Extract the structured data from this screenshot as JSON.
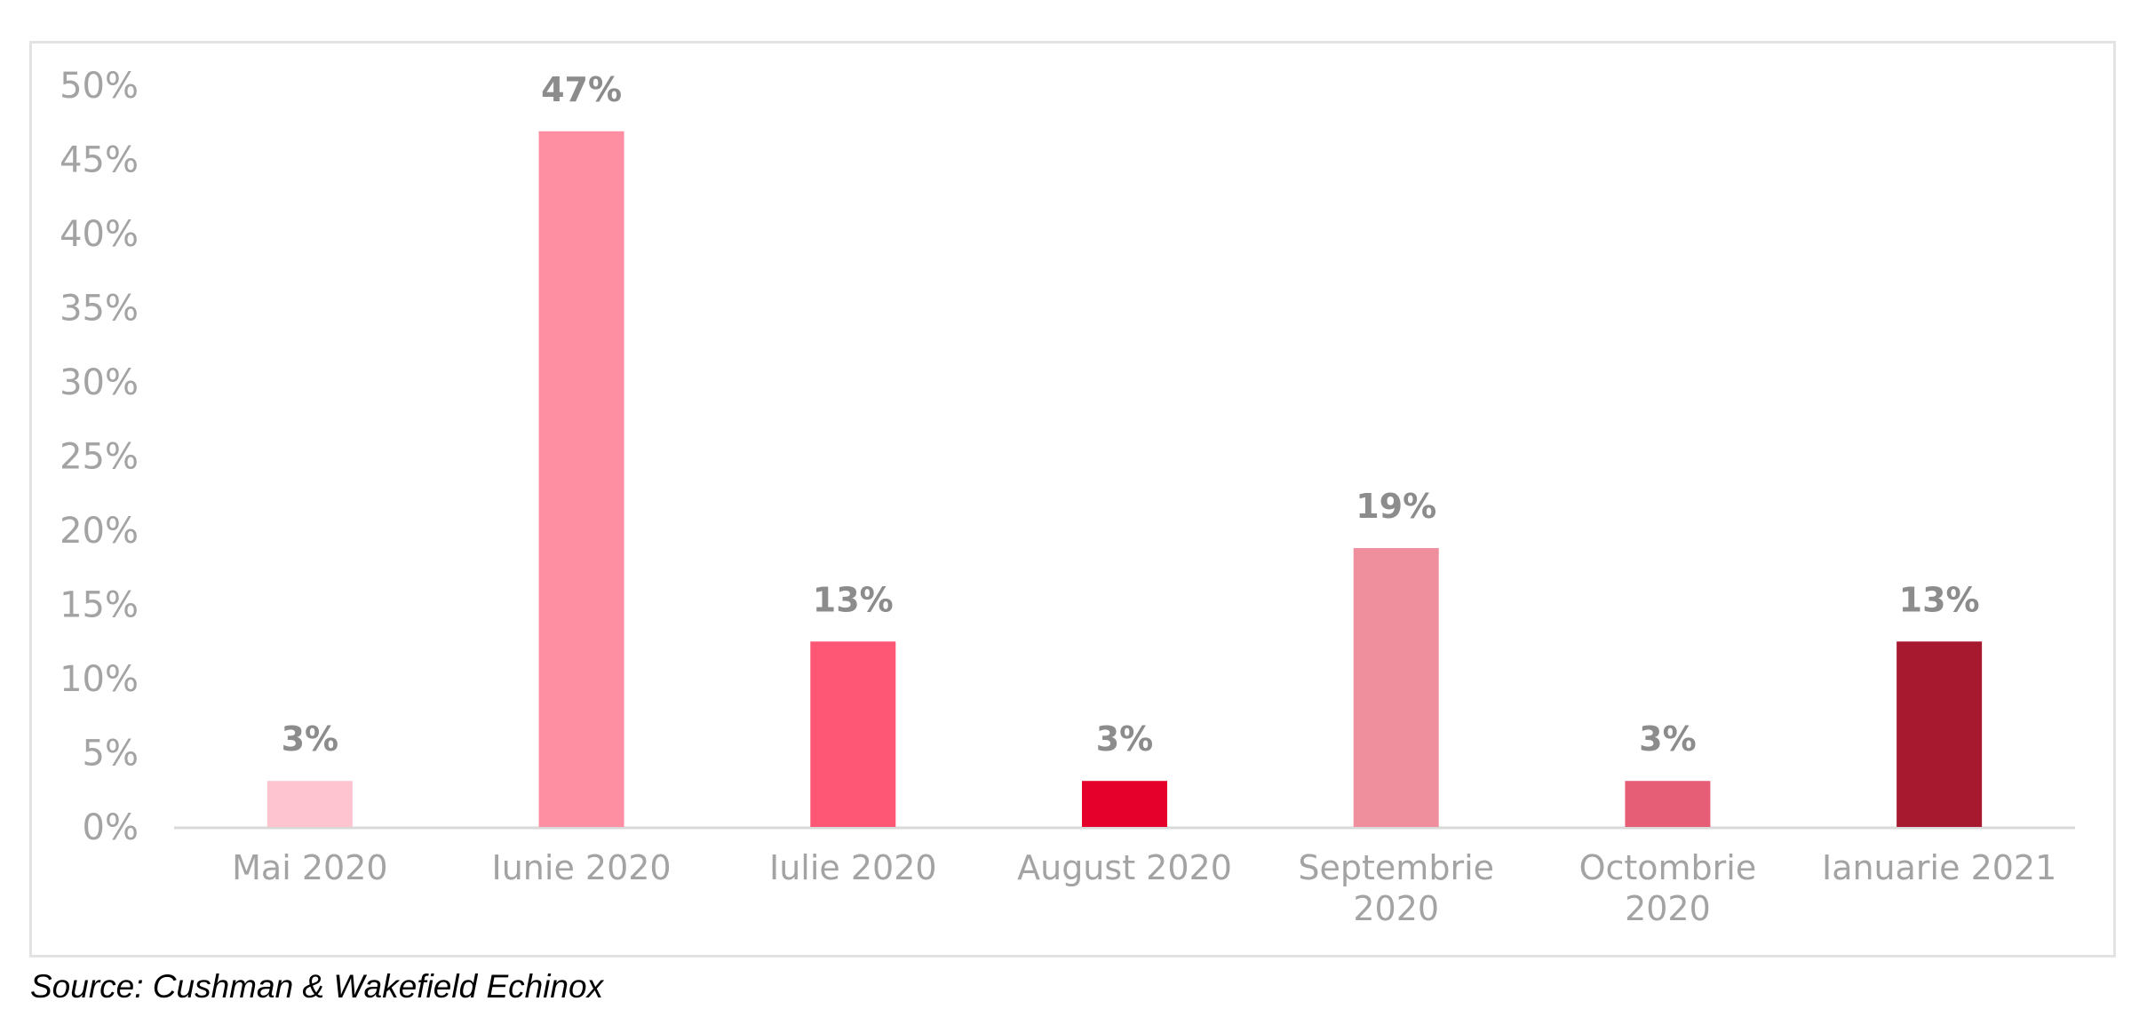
{
  "chart_data": {
    "type": "bar",
    "categories": [
      "Mai 2020",
      "Iunie 2020",
      "Iulie 2020",
      "August 2020",
      "Septembrie 2020",
      "Octombrie 2020",
      "Ianuarie 2021"
    ],
    "category_lines": [
      [
        "Mai 2020"
      ],
      [
        "Iunie 2020"
      ],
      [
        "Iulie 2020"
      ],
      [
        "August 2020"
      ],
      [
        "Septembrie",
        "2020"
      ],
      [
        "Octombrie",
        "2020"
      ],
      [
        "Ianuarie 2021"
      ]
    ],
    "values": [
      3.1,
      46.9,
      12.5,
      3.1,
      18.8,
      3.1,
      12.5
    ],
    "data_labels": [
      "3%",
      "47%",
      "13%",
      "3%",
      "19%",
      "3%",
      "13%"
    ],
    "bar_colors": [
      "#fec4d0",
      "#fe8fa3",
      "#fe5675",
      "#e4002b",
      "#ef8f9e",
      "#e65d76",
      "#a6192e"
    ],
    "ylim": [
      0,
      50
    ],
    "yticks": [
      0,
      5,
      10,
      15,
      20,
      25,
      30,
      35,
      40,
      45,
      50
    ],
    "ytick_labels": [
      "0%",
      "5%",
      "10%",
      "15%",
      "20%",
      "25%",
      "30%",
      "35%",
      "40%",
      "45%",
      "50%"
    ],
    "grid": false,
    "legend": false
  },
  "source_note": "Source: Cushman & Wakefield Echinox"
}
